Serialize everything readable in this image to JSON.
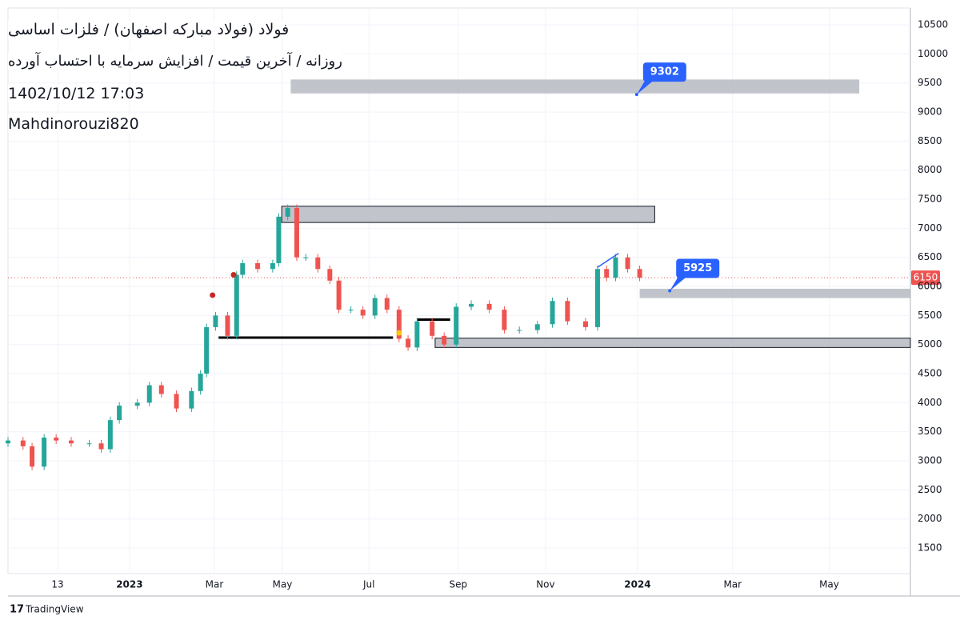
{
  "chart_data": {
    "type": "candlestick",
    "title": "فولاد (فولاد مبارکه اصفهان) / فلزات اساسی",
    "subtitle": "روزانه / آخرین قیمت / افزایش سرمایه با احتساب آورده",
    "date": "1402/10/12 17:03",
    "author": "Mahdinorouzi820",
    "brand": "TradingView",
    "x": [
      0,
      5,
      8,
      12,
      16,
      21,
      27,
      31,
      34,
      37,
      43,
      47,
      51,
      56,
      61,
      64,
      66,
      69,
      73,
      76,
      78,
      83,
      88,
      90,
      93,
      96,
      99,
      103,
      107,
      110,
      114,
      118,
      122,
      126,
      130,
      133,
      136,
      141,
      145,
      149,
      154,
      160,
      165,
      170,
      176,
      181,
      186,
      192,
      196,
      199,
      202,
      206,
      210
    ],
    "open": [
      3300,
      3350,
      3250,
      2900,
      3400,
      3350,
      3300,
      3300,
      3200,
      3700,
      3950,
      4000,
      4300,
      4150,
      3900,
      4200,
      4500,
      5300,
      5500,
      5150,
      6200,
      6400,
      6300,
      6400,
      7200,
      7350,
      6500,
      6500,
      6300,
      6100,
      5600,
      5600,
      5500,
      5800,
      5600,
      5100,
      4950,
      5400,
      5150,
      5000,
      5650,
      5700,
      5600,
      5250,
      5250,
      5350,
      5750,
      5400,
      5300,
      6300,
      6150,
      6500,
      6300
    ],
    "high": [
      3410,
      3410,
      3310,
      3460,
      3460,
      3410,
      3360,
      3360,
      3760,
      4010,
      4060,
      4360,
      4360,
      4210,
      4260,
      4560,
      5360,
      5560,
      5560,
      6260,
      6460,
      6460,
      6460,
      7260,
      7410,
      7410,
      6560,
      6560,
      6360,
      6160,
      5660,
      5660,
      5860,
      5860,
      5660,
      5160,
      5460,
      5460,
      5210,
      5710,
      5760,
      5760,
      5660,
      5310,
      5410,
      5810,
      5810,
      5460,
      6360,
      6360,
      6560,
      6560,
      6360
    ],
    "low": [
      3240,
      3190,
      2840,
      2840,
      3290,
      3240,
      3240,
      3140,
      3140,
      3640,
      3890,
      3940,
      4090,
      3840,
      3840,
      4140,
      4440,
      5240,
      5090,
      5090,
      6140,
      6240,
      6240,
      6340,
      7140,
      6440,
      6440,
      6240,
      6040,
      5540,
      5540,
      5440,
      5440,
      5540,
      5040,
      4890,
      4890,
      5090,
      4940,
      4940,
      5590,
      5540,
      5190,
      5190,
      5190,
      5290,
      5340,
      5240,
      5240,
      6090,
      6090,
      6240,
      6090
    ],
    "close": [
      3350,
      3250,
      2900,
      3400,
      3350,
      3300,
      3300,
      3200,
      3700,
      3950,
      4000,
      4300,
      4150,
      3900,
      4200,
      4500,
      5300,
      5500,
      5150,
      6200,
      6400,
      6300,
      6400,
      7200,
      7350,
      6500,
      6500,
      6300,
      6100,
      5600,
      5600,
      5500,
      5800,
      5600,
      5100,
      4950,
      5400,
      5150,
      5000,
      5650,
      5700,
      5600,
      5250,
      5250,
      5350,
      5750,
      5400,
      5300,
      6300,
      6150,
      6500,
      6300,
      6150
    ],
    "up_color": "#26a69a",
    "down_color": "#ef5350",
    "last_price": 6150,
    "xlim": [
      0,
      300
    ],
    "ylim": [
      1060,
      10790
    ],
    "xticks": [
      {
        "value": 16.5,
        "label": "13"
      },
      {
        "value": 40.4,
        "label": "2023"
      },
      {
        "value": 68.6,
        "label": "Mar"
      },
      {
        "value": 91.2,
        "label": "May"
      },
      {
        "value": 120,
        "label": "Jul"
      },
      {
        "value": 149.7,
        "label": "Sep"
      },
      {
        "value": 178.7,
        "label": "Nov"
      },
      {
        "value": 209.3,
        "label": "2024"
      },
      {
        "value": 240.9,
        "label": "Mar"
      },
      {
        "value": 273,
        "label": "May"
      }
    ],
    "yticks": [
      1500,
      2000,
      2500,
      3000,
      3500,
      4000,
      4500,
      5000,
      5500,
      6000,
      6500,
      7000,
      7500,
      8000,
      8500,
      9000,
      9500,
      10000,
      10500
    ],
    "grid": true,
    "zones": [
      {
        "low": 9320,
        "high": 9560,
        "x0": 94,
        "x1": 283
      },
      {
        "low": 7100,
        "high": 7380,
        "x0": 91,
        "x1": 215
      },
      {
        "low": 5800,
        "high": 5960,
        "x0": 210,
        "x1": 300
      },
      {
        "low": 4950,
        "high": 5110,
        "x0": 142,
        "x1": 300
      }
    ],
    "levels": [
      {
        "price": 5120,
        "x0": 70,
        "x1": 128
      },
      {
        "price": 5430,
        "x0": 136,
        "x1": 147
      }
    ],
    "callouts": [
      {
        "x": 209,
        "price": 9302,
        "label": "9302"
      },
      {
        "x": 220,
        "price": 5925,
        "label": "5925"
      }
    ],
    "trendline": {
      "x": [
        196,
        203
      ],
      "price": [
        6330,
        6570
      ]
    },
    "markers": [
      {
        "x": 68,
        "price": 5850,
        "color": "#c62828"
      },
      {
        "x": 75,
        "price": 6200,
        "color": "#c62828"
      },
      {
        "x": 130,
        "price": 5200,
        "color": "#f9c80e"
      }
    ]
  }
}
